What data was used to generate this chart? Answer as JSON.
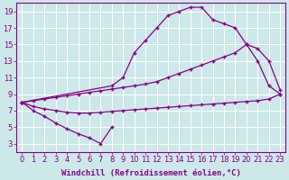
{
  "background_color": "#cce8e8",
  "grid_color": "#ffffff",
  "line_color": "#880088",
  "marker": "+",
  "xlabel": "Windchill (Refroidissement éolien,°C)",
  "xlim": [
    -0.5,
    23.5
  ],
  "ylim": [
    2,
    20
  ],
  "xticks": [
    0,
    1,
    2,
    3,
    4,
    5,
    6,
    7,
    8,
    9,
    10,
    11,
    12,
    13,
    14,
    15,
    16,
    17,
    18,
    19,
    20,
    21,
    22,
    23
  ],
  "yticks": [
    3,
    5,
    7,
    9,
    11,
    13,
    15,
    17,
    19
  ],
  "tick_fontsize": 6,
  "xlabel_fontsize": 6.5,
  "tick_color": "#880088",
  "axis_color": "#880088",
  "curve_upper_x": [
    0,
    8,
    9,
    10,
    11,
    12,
    13,
    14,
    15,
    16,
    17,
    18,
    19,
    20,
    21,
    22,
    23
  ],
  "curve_upper_y": [
    8,
    10,
    11,
    14,
    15.5,
    17,
    18.5,
    19,
    19.5,
    19.5,
    18,
    17.5,
    17,
    15,
    13,
    10,
    9
  ],
  "curve_diag_x": [
    0,
    1,
    2,
    3,
    4,
    5,
    6,
    7,
    8,
    9,
    10,
    11,
    12,
    13,
    14,
    15,
    16,
    17,
    18,
    19,
    20,
    21,
    22,
    23
  ],
  "curve_diag_y": [
    8,
    8.2,
    8.4,
    8.6,
    8.8,
    9.0,
    9.2,
    9.4,
    9.6,
    9.8,
    10.0,
    10.2,
    10.5,
    11.0,
    11.5,
    12.0,
    12.5,
    13.0,
    13.5,
    14.0,
    15.0,
    14.5,
    13.0,
    9.5
  ],
  "curve_flat_x": [
    0,
    1,
    2,
    3,
    4,
    5,
    6,
    7,
    8,
    9,
    10,
    11,
    12,
    13,
    14,
    15,
    16,
    17,
    18,
    19,
    20,
    21,
    22,
    23
  ],
  "curve_flat_y": [
    8,
    7.5,
    7.2,
    7.0,
    6.8,
    6.7,
    6.7,
    6.8,
    6.9,
    7.0,
    7.1,
    7.2,
    7.3,
    7.4,
    7.5,
    7.6,
    7.7,
    7.8,
    7.9,
    8.0,
    8.1,
    8.2,
    8.4,
    9.0
  ],
  "curve_v_x": [
    0,
    1,
    2,
    3,
    4,
    5,
    6,
    7,
    8
  ],
  "curve_v_y": [
    8,
    7,
    6.3,
    5.5,
    4.8,
    4.2,
    3.7,
    3.0,
    5.0
  ]
}
